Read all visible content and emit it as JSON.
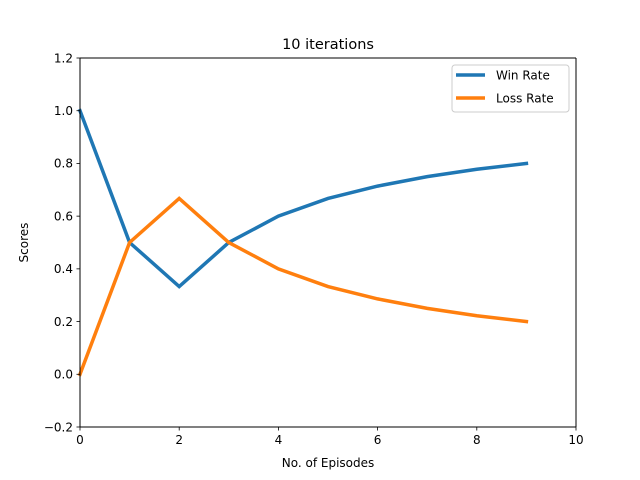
{
  "chart_data": {
    "type": "line",
    "title": "10 iterations",
    "xlabel": "No. of Episodes",
    "ylabel": "Scores",
    "xlim": [
      0,
      10
    ],
    "ylim": [
      -0.2,
      1.2
    ],
    "xticks": [
      "0",
      "2",
      "4",
      "6",
      "8",
      "10"
    ],
    "yticks": [
      "−0.2",
      "0.0",
      "0.2",
      "0.4",
      "0.6",
      "0.8",
      "1.0",
      "1.2"
    ],
    "grid": false,
    "legend_position": "top-right",
    "x": [
      0,
      1,
      2,
      3,
      4,
      5,
      6,
      7,
      8,
      9
    ],
    "series": [
      {
        "name": "Win Rate",
        "color": "#1f77b4",
        "values": [
          1.0,
          0.5,
          0.333,
          0.5,
          0.6,
          0.667,
          0.714,
          0.75,
          0.778,
          0.8
        ]
      },
      {
        "name": "Loss Rate",
        "color": "#ff7f0e",
        "values": [
          0.0,
          0.5,
          0.667,
          0.5,
          0.4,
          0.333,
          0.286,
          0.25,
          0.222,
          0.2
        ]
      }
    ]
  }
}
